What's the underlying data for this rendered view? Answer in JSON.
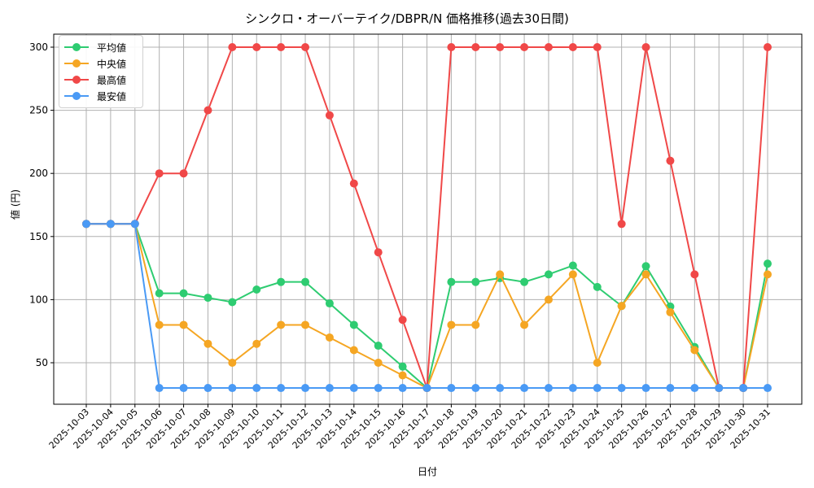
{
  "chart_data": {
    "type": "line",
    "title": "シンクロ・オーバーテイク/DBPR/N 価格推移(過去30日間)",
    "xlabel": "日付",
    "ylabel": "値 (円)",
    "ylim": [
      17,
      313
    ],
    "yticks": [
      50,
      100,
      150,
      200,
      250,
      300
    ],
    "grid": true,
    "legend_position": "upper left",
    "categories": [
      "2025-10-03",
      "2025-10-04",
      "2025-10-05",
      "2025-10-06",
      "2025-10-07",
      "2025-10-08",
      "2025-10-09",
      "2025-10-10",
      "2025-10-11",
      "2025-10-12",
      "2025-10-13",
      "2025-10-14",
      "2025-10-15",
      "2025-10-16",
      "2025-10-17",
      "2025-10-18",
      "2025-10-19",
      "2025-10-20",
      "2025-10-21",
      "2025-10-22",
      "2025-10-23",
      "2025-10-24",
      "2025-10-25",
      "2025-10-26",
      "2025-10-27",
      "2025-10-28",
      "2025-10-29",
      "2025-10-30",
      "2025-10-31"
    ],
    "series": [
      {
        "name": "平均値",
        "color": "#2ecc71",
        "values": [
          160,
          160,
          160,
          105,
          105,
          101.5,
          98,
          108,
          114,
          114,
          97,
          80,
          63.5,
          47,
          30,
          114,
          114,
          117,
          114,
          120,
          127,
          110,
          95,
          126.5,
          94.5,
          62.5,
          30,
          30,
          128.5
        ]
      },
      {
        "name": "中央値",
        "color": "#f5a623",
        "values": [
          160,
          160,
          160,
          80,
          80,
          65,
          50,
          65,
          80,
          80,
          70,
          60,
          50,
          40,
          30,
          80,
          80,
          120,
          80,
          100,
          120,
          50,
          95,
          120,
          90,
          60,
          30,
          30,
          120
        ]
      },
      {
        "name": "最高値",
        "color": "#f04848",
        "values": [
          160,
          160,
          160,
          200,
          200,
          250,
          300,
          300,
          300,
          300,
          246,
          192,
          137.5,
          84,
          30,
          300,
          300,
          300,
          300,
          300,
          300,
          300,
          160,
          300,
          210,
          120,
          30,
          30,
          300
        ]
      },
      {
        "name": "最安値",
        "color": "#4a9af5",
        "values": [
          160,
          160,
          160,
          30,
          30,
          30,
          30,
          30,
          30,
          30,
          30,
          30,
          30,
          30,
          30,
          30,
          30,
          30,
          30,
          30,
          30,
          30,
          30,
          30,
          30,
          30,
          30,
          30,
          30
        ]
      }
    ]
  }
}
